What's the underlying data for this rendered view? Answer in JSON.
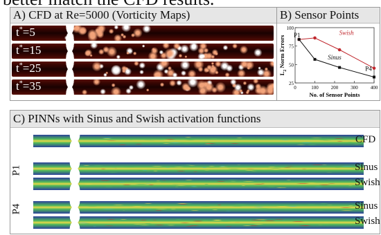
{
  "caption_fragment": "better match the CFD results.",
  "panel_a": {
    "title": "A) CFD at Re=5000 (Vorticity Maps)",
    "snapshots": [
      {
        "label": "t",
        "sup": "*",
        "value": "=5"
      },
      {
        "label": "t",
        "sup": "*",
        "value": "=15"
      },
      {
        "label": "t",
        "sup": "*",
        "value": "=25"
      },
      {
        "label": "t",
        "sup": "*",
        "value": "=35"
      }
    ],
    "colors": {
      "background": "#3a0603",
      "vortex": "#f2a37a",
      "highlight": "#ffffff"
    }
  },
  "panel_b": {
    "title": "B) Sensor Points"
  },
  "chart_data": {
    "type": "line",
    "title": "",
    "xlabel": "No. of Sensor Points",
    "ylabel": "L2 Norm Errors",
    "ylabel_main": "L",
    "ylabel_sub": "2",
    "ylabel_rest": " Norm Errors",
    "xlim": [
      0,
      400
    ],
    "ylim": [
      25,
      100
    ],
    "xticks": [
      "0",
      "100",
      "200",
      "300",
      "400"
    ],
    "yticks": [
      "25",
      "50",
      "75",
      "100"
    ],
    "series": [
      {
        "name": "Swish",
        "color": "#c0272d",
        "x": [
          20,
          100,
          225,
          400
        ],
        "y": [
          84,
          86,
          70,
          45
        ]
      },
      {
        "name": "Sinus",
        "color": "#111111",
        "x": [
          20,
          100,
          225,
          400
        ],
        "y": [
          84,
          57,
          46,
          33
        ]
      }
    ],
    "annotations": [
      "P1",
      "P4"
    ]
  },
  "panel_c": {
    "title": "C) PINNs with Sinus and Swish activation functions",
    "rows": [
      {
        "label": "CFD",
        "group": ""
      },
      {
        "label": "Sinus",
        "group": "P1"
      },
      {
        "label": "Swish",
        "group": "P1"
      },
      {
        "label": "Sinus",
        "group": "P4"
      },
      {
        "label": "Swish",
        "group": "P4"
      }
    ],
    "groups": [
      "P1",
      "P4"
    ],
    "colors": {
      "blue": "#2a3f9a",
      "green": "#4fb85a",
      "yellow": "#e8d84a",
      "red": "#c8302a",
      "cyan": "#3fb6c8"
    }
  }
}
